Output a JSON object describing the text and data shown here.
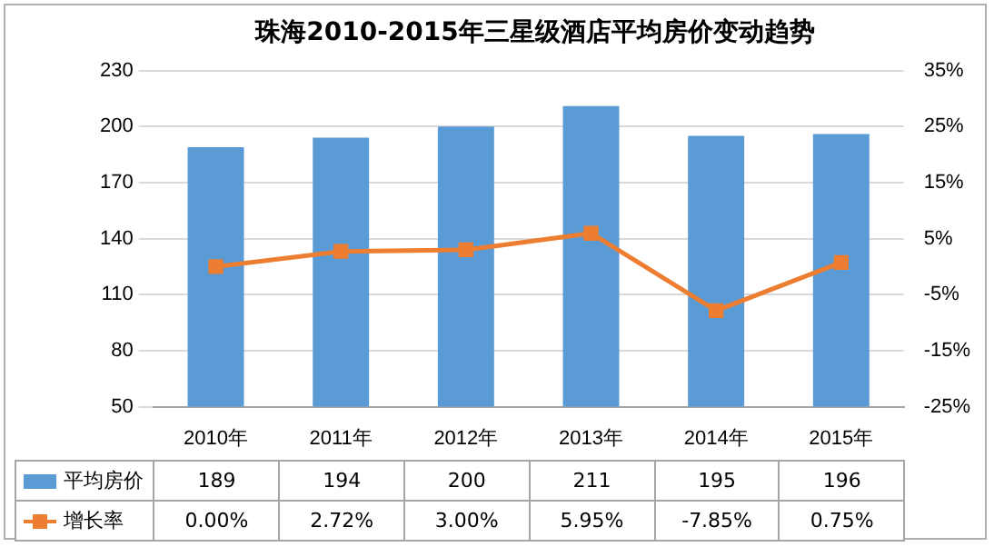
{
  "chart_data": {
    "type": "bar",
    "title": "珠海2010-2015年三星级酒店平均房价变动趋势",
    "categories": [
      "2010年",
      "2011年",
      "2012年",
      "2013年",
      "2014年",
      "2015年"
    ],
    "series": [
      {
        "name": "平均房价",
        "color": "#5b9bd5",
        "values": [
          189,
          194,
          200,
          211,
          195,
          196
        ],
        "value_labels": [
          "189",
          "194",
          "200",
          "211",
          "195",
          "196"
        ]
      },
      {
        "name": "增长率",
        "type": "line",
        "axis": "y2",
        "color": "#ed7d31",
        "marker": "square",
        "values": [
          0.0,
          2.72,
          3.0,
          5.95,
          -7.85,
          0.75
        ],
        "value_labels": [
          "0.00%",
          "2.72%",
          "3.00%",
          "5.95%",
          "-7.85%",
          "0.75%"
        ]
      }
    ],
    "ylim": [
      50,
      230
    ],
    "yticks": [
      50,
      80,
      110,
      140,
      170,
      200,
      230
    ],
    "y2lim": [
      -25,
      35
    ],
    "y2ticks": [
      {
        "value": -25,
        "label": "-25%"
      },
      {
        "value": -15,
        "label": "-15%"
      },
      {
        "value": -5,
        "label": "-5%"
      },
      {
        "value": 5,
        "label": "5%"
      },
      {
        "value": 15,
        "label": "15%"
      },
      {
        "value": 25,
        "label": "25%"
      },
      {
        "value": 35,
        "label": "35%"
      }
    ],
    "grid": "y",
    "legend": "bottom"
  }
}
